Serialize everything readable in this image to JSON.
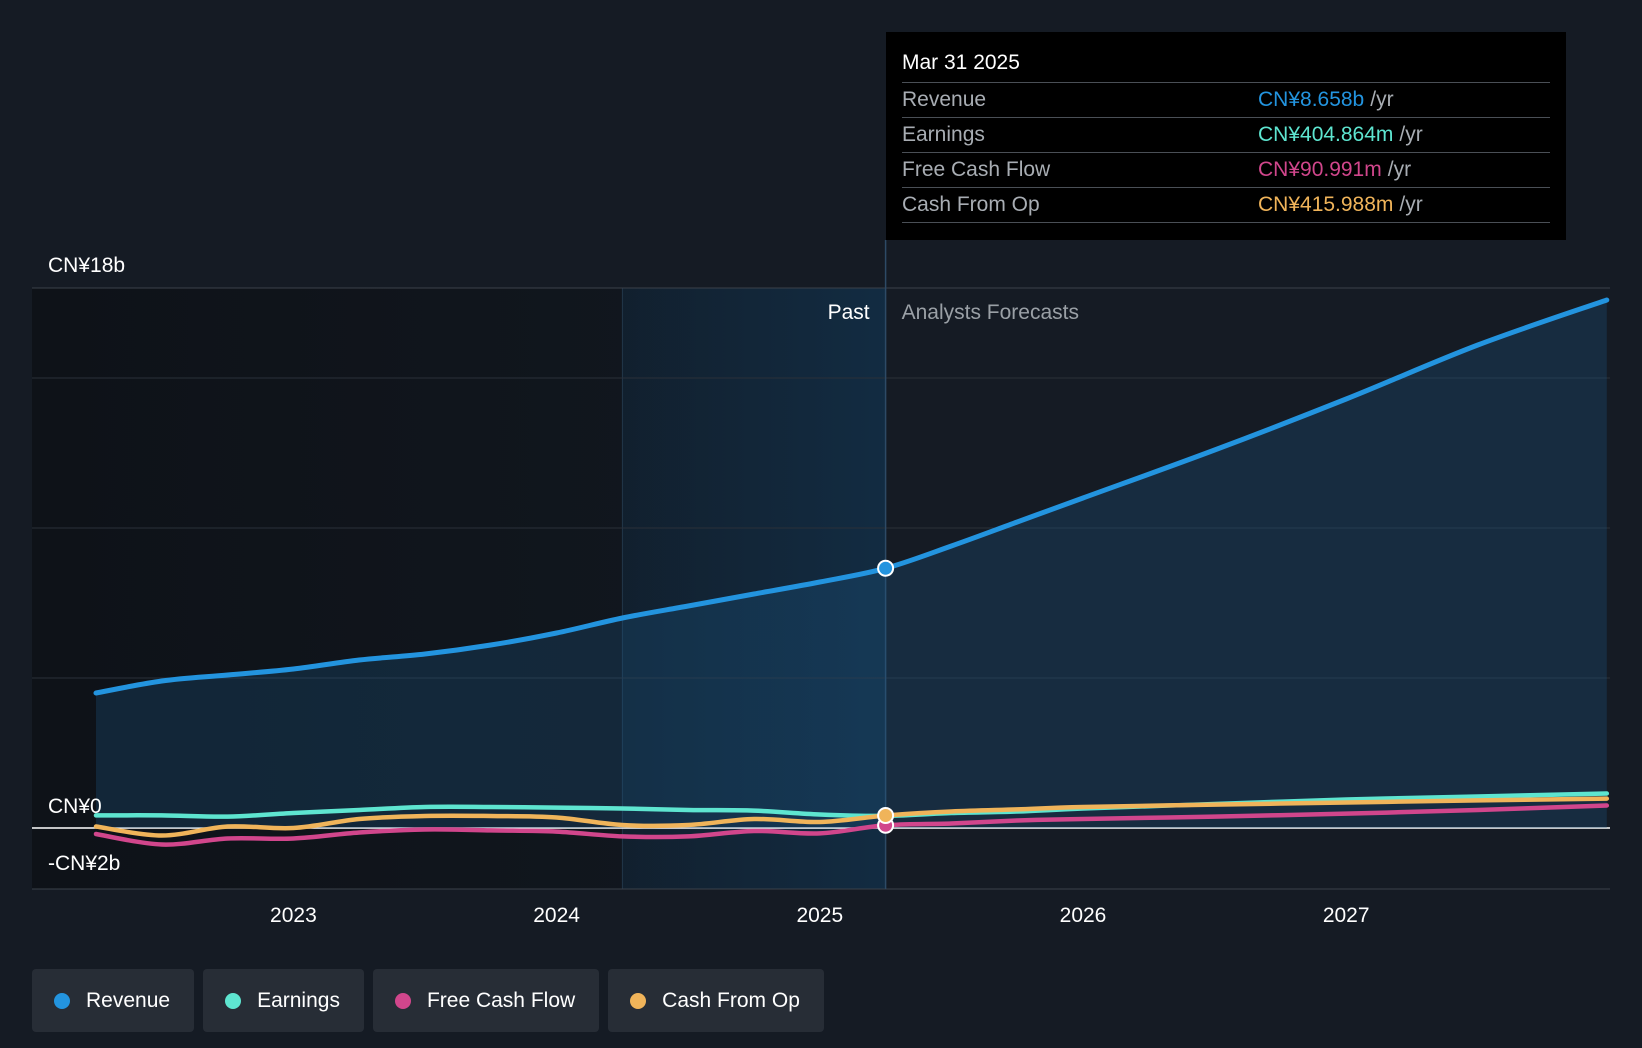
{
  "tooltip": {
    "date": "Mar 31 2025",
    "rows": [
      {
        "label": "Revenue",
        "value": "CN¥8.658b",
        "unit": "/yr",
        "color": "#2394df"
      },
      {
        "label": "Earnings",
        "value": "CN¥404.864m",
        "unit": "/yr",
        "color": "#5ee5d0"
      },
      {
        "label": "Free Cash Flow",
        "value": "CN¥90.991m",
        "unit": "/yr",
        "color": "#d1468c"
      },
      {
        "label": "Cash From Op",
        "value": "CN¥415.988m",
        "unit": "/yr",
        "color": "#f0b45a"
      }
    ]
  },
  "labels": {
    "past": "Past",
    "forecast": "Analysts Forecasts"
  },
  "legend": [
    {
      "label": "Revenue",
      "color": "#2394df"
    },
    {
      "label": "Earnings",
      "color": "#5ee5d0"
    },
    {
      "label": "Free Cash Flow",
      "color": "#d1468c"
    },
    {
      "label": "Cash From Op",
      "color": "#f0b45a"
    }
  ],
  "chart_data": {
    "type": "line",
    "currency": "CN¥",
    "ylim": [
      -2,
      18
    ],
    "y_tick_labels": [
      {
        "value": 18,
        "label": "CN¥18b"
      },
      {
        "value": 0,
        "label": "CN¥0"
      },
      {
        "value": -2,
        "label": "-CN¥2b"
      }
    ],
    "x_tick_labels": [
      {
        "value": 2023,
        "label": "2023"
      },
      {
        "value": 2024,
        "label": "2024"
      },
      {
        "value": 2025,
        "label": "2025"
      },
      {
        "value": 2026,
        "label": "2026"
      },
      {
        "value": 2027,
        "label": "2027"
      }
    ],
    "xlim": [
      2022.0,
      2027.99
    ],
    "past_band_start": 2024.25,
    "forecast_start": 2025.25,
    "gridlines": [
      18,
      15,
      10,
      5
    ],
    "highlight_x": 2025.25,
    "series": [
      {
        "name": "Revenue",
        "color": "#2394df",
        "points": [
          [
            2022.25,
            4.5
          ],
          [
            2022.5,
            4.9
          ],
          [
            2022.75,
            5.1
          ],
          [
            2023.0,
            5.3
          ],
          [
            2023.25,
            5.6
          ],
          [
            2023.5,
            5.8
          ],
          [
            2023.75,
            6.1
          ],
          [
            2024.0,
            6.5
          ],
          [
            2024.25,
            7.0
          ],
          [
            2024.5,
            7.4
          ],
          [
            2024.75,
            7.8
          ],
          [
            2025.0,
            8.2
          ],
          [
            2025.25,
            8.658
          ],
          [
            2025.5,
            9.4
          ],
          [
            2025.75,
            10.2
          ],
          [
            2026.0,
            11.0
          ],
          [
            2026.5,
            12.6
          ],
          [
            2027.0,
            14.3
          ],
          [
            2027.5,
            16.1
          ],
          [
            2027.99,
            17.6
          ]
        ]
      },
      {
        "name": "Earnings",
        "color": "#5ee5d0",
        "points": [
          [
            2022.25,
            0.42
          ],
          [
            2022.5,
            0.42
          ],
          [
            2022.75,
            0.38
          ],
          [
            2023.0,
            0.5
          ],
          [
            2023.25,
            0.6
          ],
          [
            2023.5,
            0.7
          ],
          [
            2023.75,
            0.7
          ],
          [
            2024.0,
            0.68
          ],
          [
            2024.25,
            0.65
          ],
          [
            2024.5,
            0.6
          ],
          [
            2024.75,
            0.58
          ],
          [
            2025.0,
            0.45
          ],
          [
            2025.25,
            0.405
          ],
          [
            2025.5,
            0.5
          ],
          [
            2025.75,
            0.55
          ],
          [
            2026.0,
            0.65
          ],
          [
            2026.5,
            0.8
          ],
          [
            2027.0,
            0.95
          ],
          [
            2027.5,
            1.05
          ],
          [
            2027.99,
            1.15
          ]
        ]
      },
      {
        "name": "Free Cash Flow",
        "color": "#d1468c",
        "points": [
          [
            2022.25,
            -0.2
          ],
          [
            2022.5,
            -0.55
          ],
          [
            2022.75,
            -0.35
          ],
          [
            2023.0,
            -0.35
          ],
          [
            2023.25,
            -0.15
          ],
          [
            2023.5,
            -0.05
          ],
          [
            2023.75,
            -0.08
          ],
          [
            2024.0,
            -0.12
          ],
          [
            2024.25,
            -0.28
          ],
          [
            2024.5,
            -0.28
          ],
          [
            2024.75,
            -0.1
          ],
          [
            2025.0,
            -0.18
          ],
          [
            2025.25,
            0.091
          ],
          [
            2025.5,
            0.15
          ],
          [
            2025.75,
            0.25
          ],
          [
            2026.0,
            0.3
          ],
          [
            2026.5,
            0.38
          ],
          [
            2027.0,
            0.48
          ],
          [
            2027.5,
            0.6
          ],
          [
            2027.99,
            0.75
          ]
        ]
      },
      {
        "name": "Cash From Op",
        "color": "#f0b45a",
        "points": [
          [
            2022.25,
            0.05
          ],
          [
            2022.5,
            -0.25
          ],
          [
            2022.75,
            0.05
          ],
          [
            2023.0,
            0.0
          ],
          [
            2023.25,
            0.3
          ],
          [
            2023.5,
            0.4
          ],
          [
            2023.75,
            0.4
          ],
          [
            2024.0,
            0.35
          ],
          [
            2024.25,
            0.1
          ],
          [
            2024.5,
            0.1
          ],
          [
            2024.75,
            0.3
          ],
          [
            2025.0,
            0.2
          ],
          [
            2025.25,
            0.416
          ],
          [
            2025.5,
            0.55
          ],
          [
            2025.75,
            0.62
          ],
          [
            2026.0,
            0.7
          ],
          [
            2026.5,
            0.78
          ],
          [
            2027.0,
            0.85
          ],
          [
            2027.5,
            0.92
          ],
          [
            2027.99,
            0.98
          ]
        ]
      }
    ]
  }
}
